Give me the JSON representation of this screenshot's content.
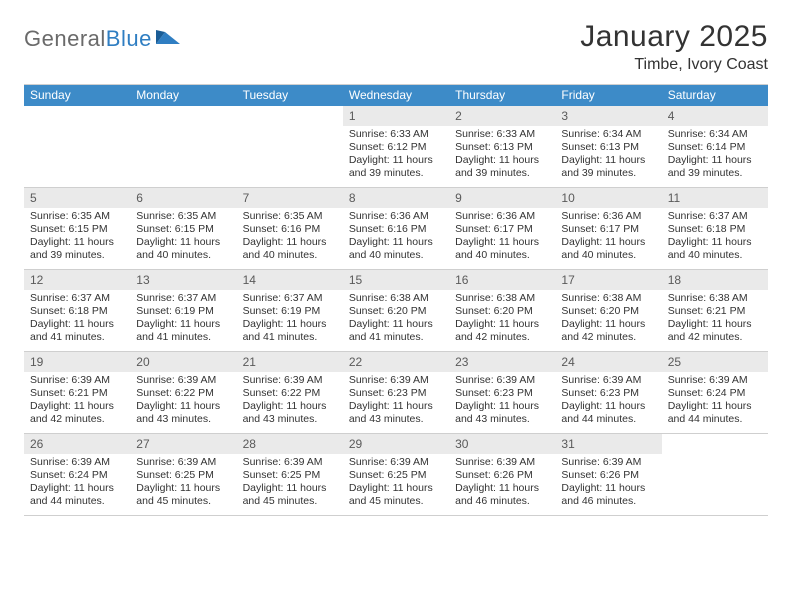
{
  "logo": {
    "word1": "General",
    "word2": "Blue"
  },
  "title": "January 2025",
  "subtitle": "Timbe, Ivory Coast",
  "colors": {
    "header_bg": "#3d8bc8",
    "daynum_bg": "#eaeaea",
    "border": "#cfcfcf",
    "text": "#333333",
    "logo_gray": "#6a6a6a",
    "logo_blue": "#2f7ec2"
  },
  "dow": [
    "Sunday",
    "Monday",
    "Tuesday",
    "Wednesday",
    "Thursday",
    "Friday",
    "Saturday"
  ],
  "weeks": [
    [
      {
        "blank": true
      },
      {
        "blank": true
      },
      {
        "blank": true
      },
      {
        "day": "1",
        "sunrise": "Sunrise: 6:33 AM",
        "sunset": "Sunset: 6:12 PM",
        "daylight": "Daylight: 11 hours and 39 minutes."
      },
      {
        "day": "2",
        "sunrise": "Sunrise: 6:33 AM",
        "sunset": "Sunset: 6:13 PM",
        "daylight": "Daylight: 11 hours and 39 minutes."
      },
      {
        "day": "3",
        "sunrise": "Sunrise: 6:34 AM",
        "sunset": "Sunset: 6:13 PM",
        "daylight": "Daylight: 11 hours and 39 minutes."
      },
      {
        "day": "4",
        "sunrise": "Sunrise: 6:34 AM",
        "sunset": "Sunset: 6:14 PM",
        "daylight": "Daylight: 11 hours and 39 minutes."
      }
    ],
    [
      {
        "day": "5",
        "sunrise": "Sunrise: 6:35 AM",
        "sunset": "Sunset: 6:15 PM",
        "daylight": "Daylight: 11 hours and 39 minutes."
      },
      {
        "day": "6",
        "sunrise": "Sunrise: 6:35 AM",
        "sunset": "Sunset: 6:15 PM",
        "daylight": "Daylight: 11 hours and 40 minutes."
      },
      {
        "day": "7",
        "sunrise": "Sunrise: 6:35 AM",
        "sunset": "Sunset: 6:16 PM",
        "daylight": "Daylight: 11 hours and 40 minutes."
      },
      {
        "day": "8",
        "sunrise": "Sunrise: 6:36 AM",
        "sunset": "Sunset: 6:16 PM",
        "daylight": "Daylight: 11 hours and 40 minutes."
      },
      {
        "day": "9",
        "sunrise": "Sunrise: 6:36 AM",
        "sunset": "Sunset: 6:17 PM",
        "daylight": "Daylight: 11 hours and 40 minutes."
      },
      {
        "day": "10",
        "sunrise": "Sunrise: 6:36 AM",
        "sunset": "Sunset: 6:17 PM",
        "daylight": "Daylight: 11 hours and 40 minutes."
      },
      {
        "day": "11",
        "sunrise": "Sunrise: 6:37 AM",
        "sunset": "Sunset: 6:18 PM",
        "daylight": "Daylight: 11 hours and 40 minutes."
      }
    ],
    [
      {
        "day": "12",
        "sunrise": "Sunrise: 6:37 AM",
        "sunset": "Sunset: 6:18 PM",
        "daylight": "Daylight: 11 hours and 41 minutes."
      },
      {
        "day": "13",
        "sunrise": "Sunrise: 6:37 AM",
        "sunset": "Sunset: 6:19 PM",
        "daylight": "Daylight: 11 hours and 41 minutes."
      },
      {
        "day": "14",
        "sunrise": "Sunrise: 6:37 AM",
        "sunset": "Sunset: 6:19 PM",
        "daylight": "Daylight: 11 hours and 41 minutes."
      },
      {
        "day": "15",
        "sunrise": "Sunrise: 6:38 AM",
        "sunset": "Sunset: 6:20 PM",
        "daylight": "Daylight: 11 hours and 41 minutes."
      },
      {
        "day": "16",
        "sunrise": "Sunrise: 6:38 AM",
        "sunset": "Sunset: 6:20 PM",
        "daylight": "Daylight: 11 hours and 42 minutes."
      },
      {
        "day": "17",
        "sunrise": "Sunrise: 6:38 AM",
        "sunset": "Sunset: 6:20 PM",
        "daylight": "Daylight: 11 hours and 42 minutes."
      },
      {
        "day": "18",
        "sunrise": "Sunrise: 6:38 AM",
        "sunset": "Sunset: 6:21 PM",
        "daylight": "Daylight: 11 hours and 42 minutes."
      }
    ],
    [
      {
        "day": "19",
        "sunrise": "Sunrise: 6:39 AM",
        "sunset": "Sunset: 6:21 PM",
        "daylight": "Daylight: 11 hours and 42 minutes."
      },
      {
        "day": "20",
        "sunrise": "Sunrise: 6:39 AM",
        "sunset": "Sunset: 6:22 PM",
        "daylight": "Daylight: 11 hours and 43 minutes."
      },
      {
        "day": "21",
        "sunrise": "Sunrise: 6:39 AM",
        "sunset": "Sunset: 6:22 PM",
        "daylight": "Daylight: 11 hours and 43 minutes."
      },
      {
        "day": "22",
        "sunrise": "Sunrise: 6:39 AM",
        "sunset": "Sunset: 6:23 PM",
        "daylight": "Daylight: 11 hours and 43 minutes."
      },
      {
        "day": "23",
        "sunrise": "Sunrise: 6:39 AM",
        "sunset": "Sunset: 6:23 PM",
        "daylight": "Daylight: 11 hours and 43 minutes."
      },
      {
        "day": "24",
        "sunrise": "Sunrise: 6:39 AM",
        "sunset": "Sunset: 6:23 PM",
        "daylight": "Daylight: 11 hours and 44 minutes."
      },
      {
        "day": "25",
        "sunrise": "Sunrise: 6:39 AM",
        "sunset": "Sunset: 6:24 PM",
        "daylight": "Daylight: 11 hours and 44 minutes."
      }
    ],
    [
      {
        "day": "26",
        "sunrise": "Sunrise: 6:39 AM",
        "sunset": "Sunset: 6:24 PM",
        "daylight": "Daylight: 11 hours and 44 minutes."
      },
      {
        "day": "27",
        "sunrise": "Sunrise: 6:39 AM",
        "sunset": "Sunset: 6:25 PM",
        "daylight": "Daylight: 11 hours and 45 minutes."
      },
      {
        "day": "28",
        "sunrise": "Sunrise: 6:39 AM",
        "sunset": "Sunset: 6:25 PM",
        "daylight": "Daylight: 11 hours and 45 minutes."
      },
      {
        "day": "29",
        "sunrise": "Sunrise: 6:39 AM",
        "sunset": "Sunset: 6:25 PM",
        "daylight": "Daylight: 11 hours and 45 minutes."
      },
      {
        "day": "30",
        "sunrise": "Sunrise: 6:39 AM",
        "sunset": "Sunset: 6:26 PM",
        "daylight": "Daylight: 11 hours and 46 minutes."
      },
      {
        "day": "31",
        "sunrise": "Sunrise: 6:39 AM",
        "sunset": "Sunset: 6:26 PM",
        "daylight": "Daylight: 11 hours and 46 minutes."
      },
      {
        "blank": true
      }
    ]
  ]
}
